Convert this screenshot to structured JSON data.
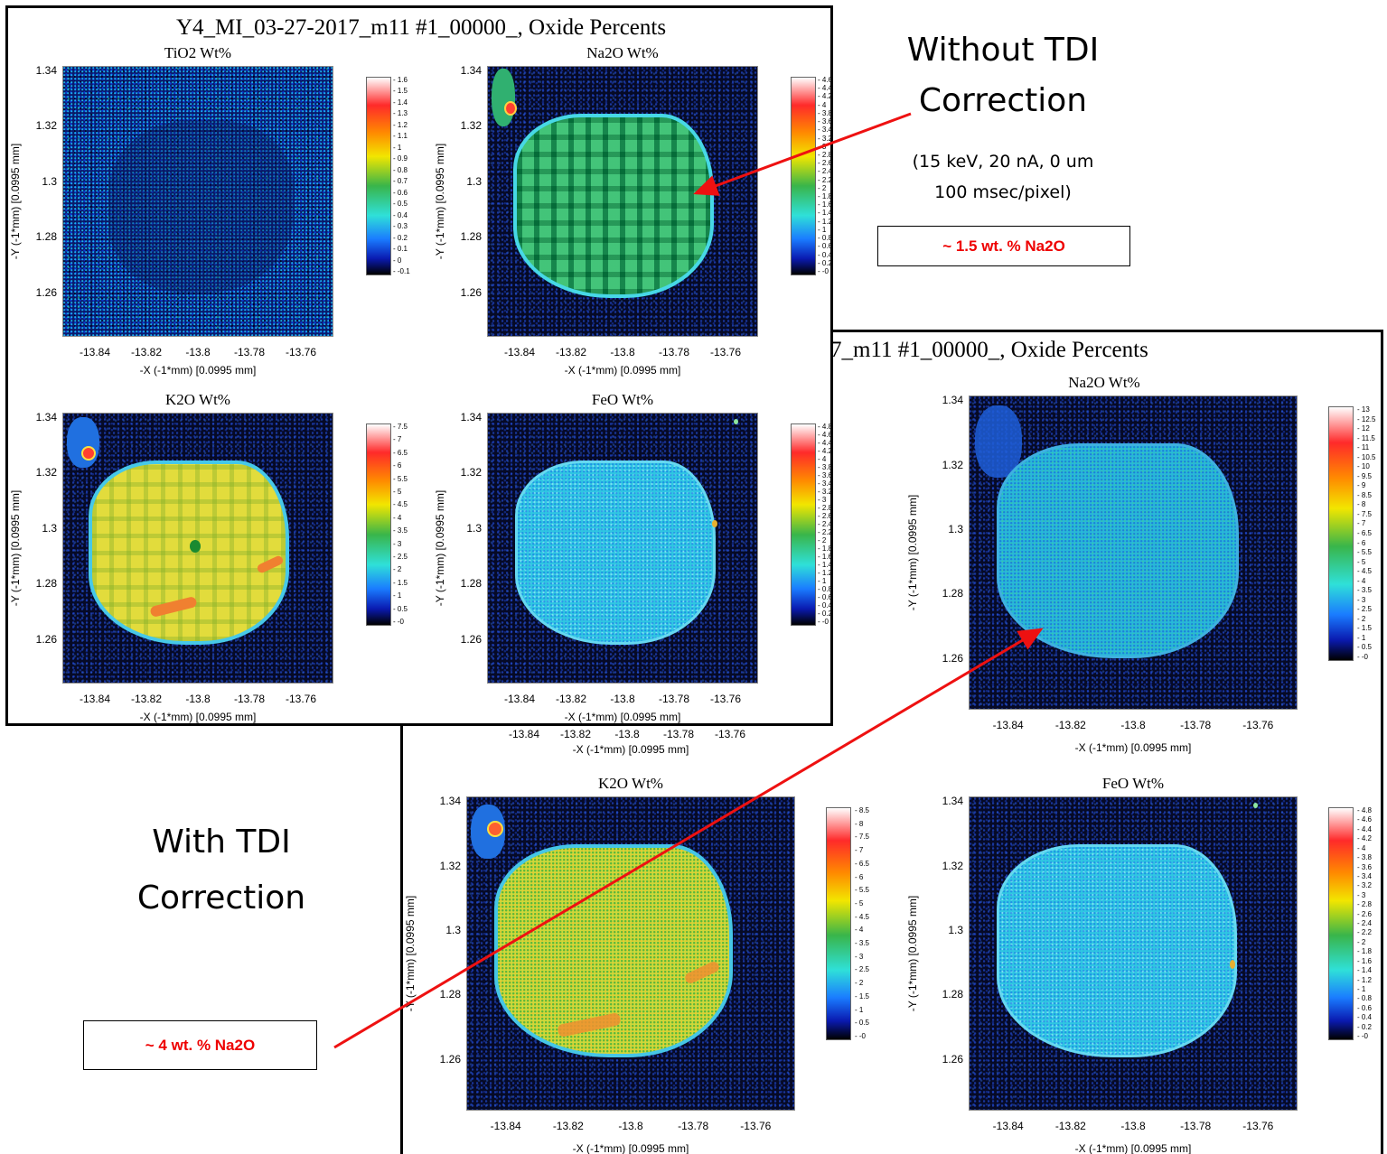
{
  "before": {
    "title": "Y4_MI_03-27-2017_m11 #1_00000_, Oxide Percents",
    "panels": [
      {
        "id": "tio2",
        "title": "TiO2 Wt%",
        "colorbar": [
          "1.6",
          "1.5",
          "1.4",
          "1.3",
          "1.2",
          "1.1",
          "1",
          "0.9",
          "0.8",
          "0.7",
          "0.6",
          "0.5",
          "0.4",
          "0.3",
          "0.2",
          "0.1",
          "0",
          "-0.1"
        ]
      },
      {
        "id": "na2o",
        "title": "Na2O Wt%",
        "colorbar": [
          "4.6",
          "4.4",
          "4.2",
          "4",
          "3.8",
          "3.6",
          "3.4",
          "3.2",
          "3",
          "2.8",
          "2.6",
          "2.4",
          "2.2",
          "2",
          "1.8",
          "1.6",
          "1.4",
          "1.2",
          "1",
          "0.8",
          "0.6",
          "0.4",
          "0.2",
          "-0"
        ]
      },
      {
        "id": "k2o",
        "title": "K2O Wt%",
        "colorbar": [
          "7.5",
          "7",
          "6.5",
          "6",
          "5.5",
          "5",
          "4.5",
          "4",
          "3.5",
          "3",
          "2.5",
          "2",
          "1.5",
          "1",
          "0.5",
          "-0"
        ]
      },
      {
        "id": "feo",
        "title": "FeO Wt%",
        "colorbar": [
          "4.8",
          "4.6",
          "4.4",
          "4.2",
          "4",
          "3.8",
          "3.6",
          "3.4",
          "3.2",
          "3",
          "2.8",
          "2.6",
          "2.4",
          "2.2",
          "2",
          "1.8",
          "1.6",
          "1.4",
          "1.2",
          "1",
          "0.8",
          "0.6",
          "0.4",
          "0.2",
          "-0"
        ]
      }
    ]
  },
  "after": {
    "title_partial": "7_m11 #1_00000_, Oxide Percents",
    "hidden_colorbar": [
      "1.6",
      "1.5",
      "1.4",
      "1.3",
      "1.2",
      "1.1",
      "1",
      "0.9",
      "0.8",
      "0.7",
      "0.6",
      "0.5",
      "0.4",
      "0.3",
      "0.2",
      "0.1",
      "0",
      "-0.1"
    ],
    "hidden_xticks": [
      "-13.84",
      "-13.82",
      "-13.8",
      "-13.78",
      "-13.76"
    ],
    "panels": [
      {
        "id": "na2o",
        "title": "Na2O Wt%",
        "colorbar": [
          "13",
          "12.5",
          "12",
          "11.5",
          "11",
          "10.5",
          "10",
          "9.5",
          "9",
          "8.5",
          "8",
          "7.5",
          "7",
          "6.5",
          "6",
          "5.5",
          "5",
          "4.5",
          "4",
          "3.5",
          "3",
          "2.5",
          "2",
          "1.5",
          "1",
          "0.5",
          "-0"
        ]
      },
      {
        "id": "k2o",
        "title": "K2O Wt%",
        "colorbar": [
          "8.5",
          "8",
          "7.5",
          "7",
          "6.5",
          "6",
          "5.5",
          "5",
          "4.5",
          "4",
          "3.5",
          "3",
          "2.5",
          "2",
          "1.5",
          "1",
          "0.5",
          "-0"
        ]
      },
      {
        "id": "feo",
        "title": "FeO Wt%",
        "colorbar": [
          "4.8",
          "4.6",
          "4.4",
          "4.2",
          "4",
          "3.8",
          "3.6",
          "3.4",
          "3.2",
          "3",
          "2.8",
          "2.6",
          "2.4",
          "2.2",
          "2",
          "1.8",
          "1.6",
          "1.4",
          "1.2",
          "1",
          "0.8",
          "0.6",
          "0.4",
          "0.2",
          "-0"
        ]
      }
    ]
  },
  "axes": {
    "xlabel": "-X (-1*mm)   [0.0995 mm]",
    "ylabel": "-Y (-1*mm)   [0.0995 mm]",
    "xticks": [
      "-13.84",
      "-13.82",
      "-13.8",
      "-13.78",
      "-13.76"
    ],
    "yticks": [
      "1.34",
      "1.32",
      "1.3",
      "1.28",
      "1.26"
    ]
  },
  "annotations": {
    "without_line1": "Without TDI",
    "without_line2": "Correction",
    "conditions_line1": "(15 keV, 20 nA, 0 um",
    "conditions_line2": "100 msec/pixel)",
    "before_value": "~ 1.5 wt. % Na2O",
    "with_line1": "With TDI",
    "with_line2": "Correction",
    "after_value": "~ 4 wt. % Na2O"
  },
  "colors": {
    "arrow": "#ee1111",
    "value_text": "#ee0000",
    "background_map": "#060a26"
  }
}
